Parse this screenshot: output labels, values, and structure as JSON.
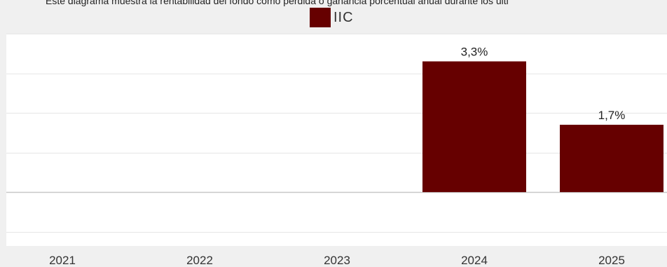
{
  "subtitle": "Este diagrama muestra la rentabilidad del fondo como pérdida o ganancia porcentual anual durante los últi",
  "colors": {
    "series": "#660000",
    "plot_bg": "#ffffff",
    "page_bg": "#f0f0f0",
    "grid": "#e6e6e6",
    "zero_line": "#c8c8c8"
  },
  "chart_data": {
    "type": "bar",
    "categories": [
      "2021",
      "2022",
      "2023",
      "2024",
      "2025"
    ],
    "series": [
      {
        "name": "IIC",
        "values": [
          null,
          null,
          null,
          3.3,
          1.7
        ],
        "labels": [
          "",
          "",
          "",
          "3,3%",
          "1,7%"
        ]
      }
    ],
    "ylim": [
      -1.2,
      4.0
    ],
    "gridlines": [
      -1,
      0,
      1,
      2,
      3,
      4
    ],
    "grid": true,
    "legend": "top-center"
  }
}
